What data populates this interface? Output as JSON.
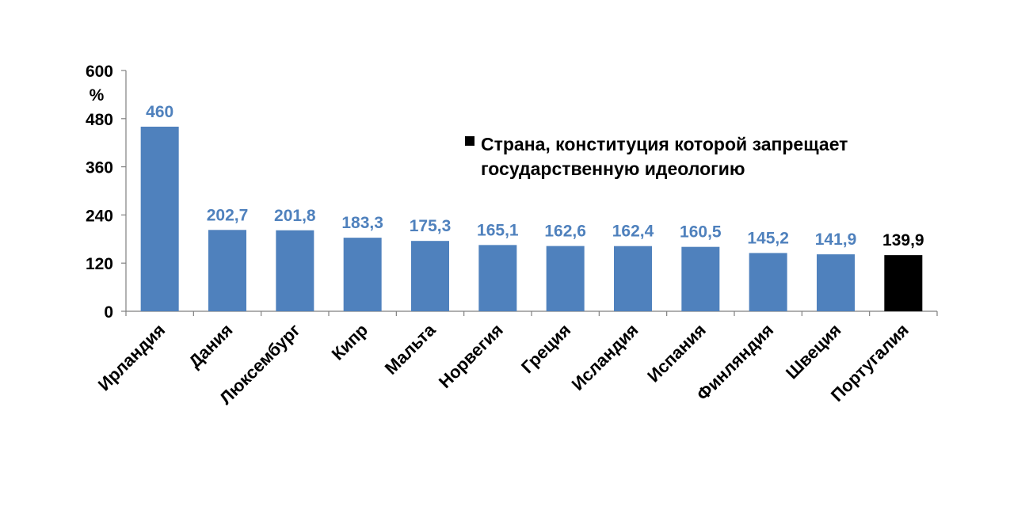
{
  "chart_data": {
    "type": "bar",
    "title": "",
    "xlabel": "",
    "ylabel": "%",
    "ylim": [
      0,
      600
    ],
    "yticks": [
      0,
      120,
      240,
      360,
      480,
      600
    ],
    "grid": false,
    "legend_position": "top-right",
    "categories": [
      "Ирландия",
      "Дания",
      "Люксембург",
      "Кипр",
      "Мальта",
      "Норвегия",
      "Греция",
      "Исландия",
      "Испания",
      "Финляндия",
      "Швеция",
      "Португалия"
    ],
    "values": [
      460,
      202.7,
      201.8,
      183.3,
      175.3,
      165.1,
      162.6,
      162.4,
      160.5,
      145.2,
      141.9,
      139.9
    ],
    "value_labels": [
      "460",
      "202,7",
      "201,8",
      "183,3",
      "175,3",
      "165,1",
      "162,6",
      "162,4",
      "160,5",
      "145,2",
      "141,9",
      "139,9"
    ],
    "highlighted_index": 11,
    "legend": {
      "lines": [
        "Страна, конституция которой запрещает",
        "государственную идеологию"
      ]
    }
  },
  "colors": {
    "bar": "#4f81bd",
    "highlight": "#000000",
    "label": "#4f81bd",
    "highlight_label": "#000000",
    "axis": "#808080"
  }
}
